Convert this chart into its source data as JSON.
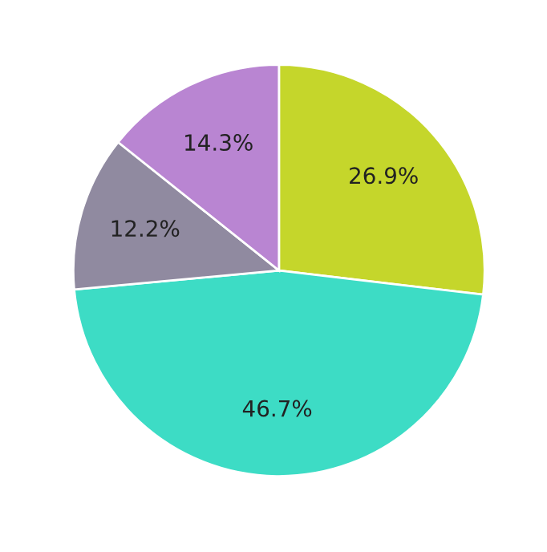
{
  "chart_data": {
    "type": "pie",
    "categories": [
      null,
      null,
      null,
      null
    ],
    "values": [
      26.9,
      46.7,
      12.2,
      14.3
    ],
    "colors": [
      "#c5d62b",
      "#3ddcc5",
      "#908aa0",
      "#b985d2"
    ],
    "value_labels": [
      "26.9%",
      "46.7%",
      "12.2%",
      "14.3%"
    ]
  }
}
